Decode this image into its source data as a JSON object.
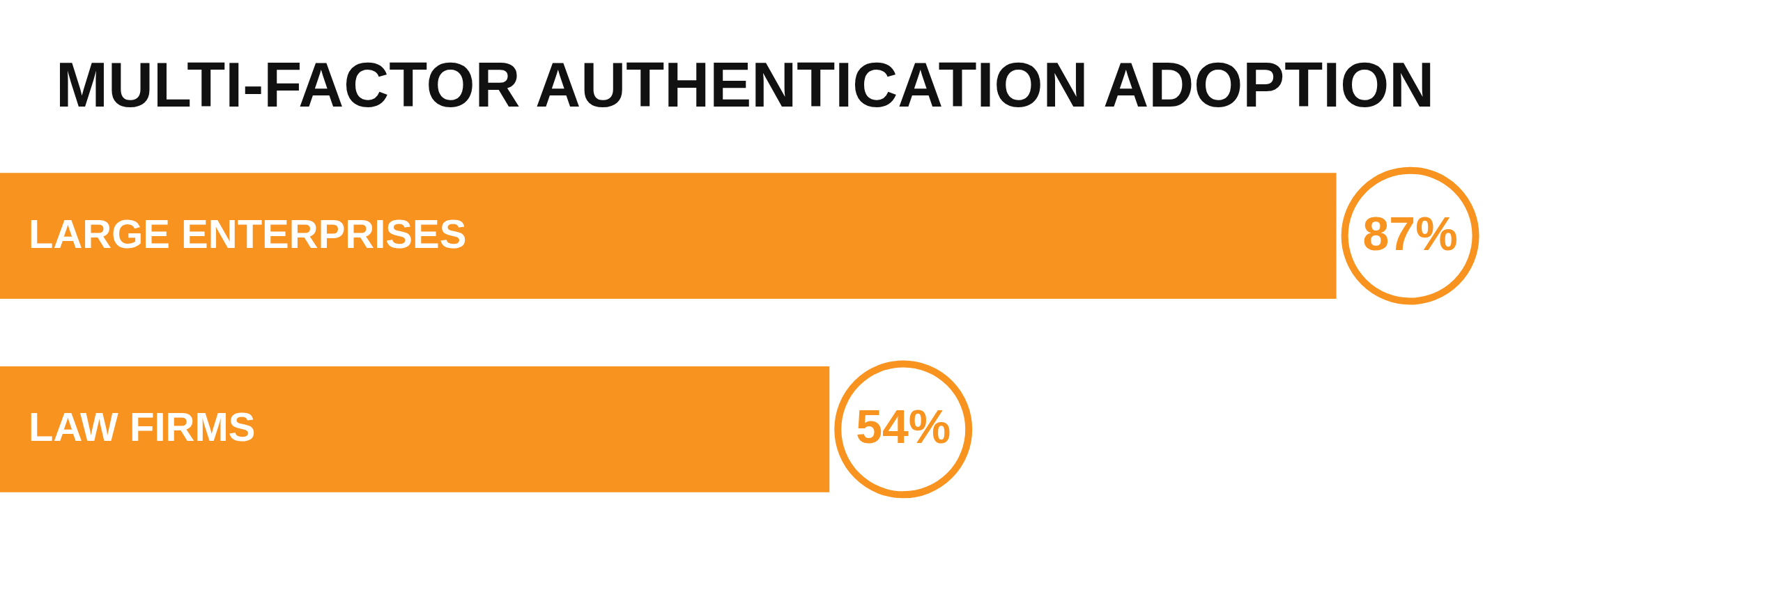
{
  "chart_data": {
    "type": "bar",
    "orientation": "horizontal",
    "title": "MULTI-FACTOR AUTHENTICATION ADOPTION",
    "categories": [
      "LARGE ENTERPRISES",
      "LAW FIRMS"
    ],
    "values": [
      87,
      54
    ],
    "value_labels": [
      "87%",
      "54%"
    ],
    "color": "#f7931e"
  }
}
